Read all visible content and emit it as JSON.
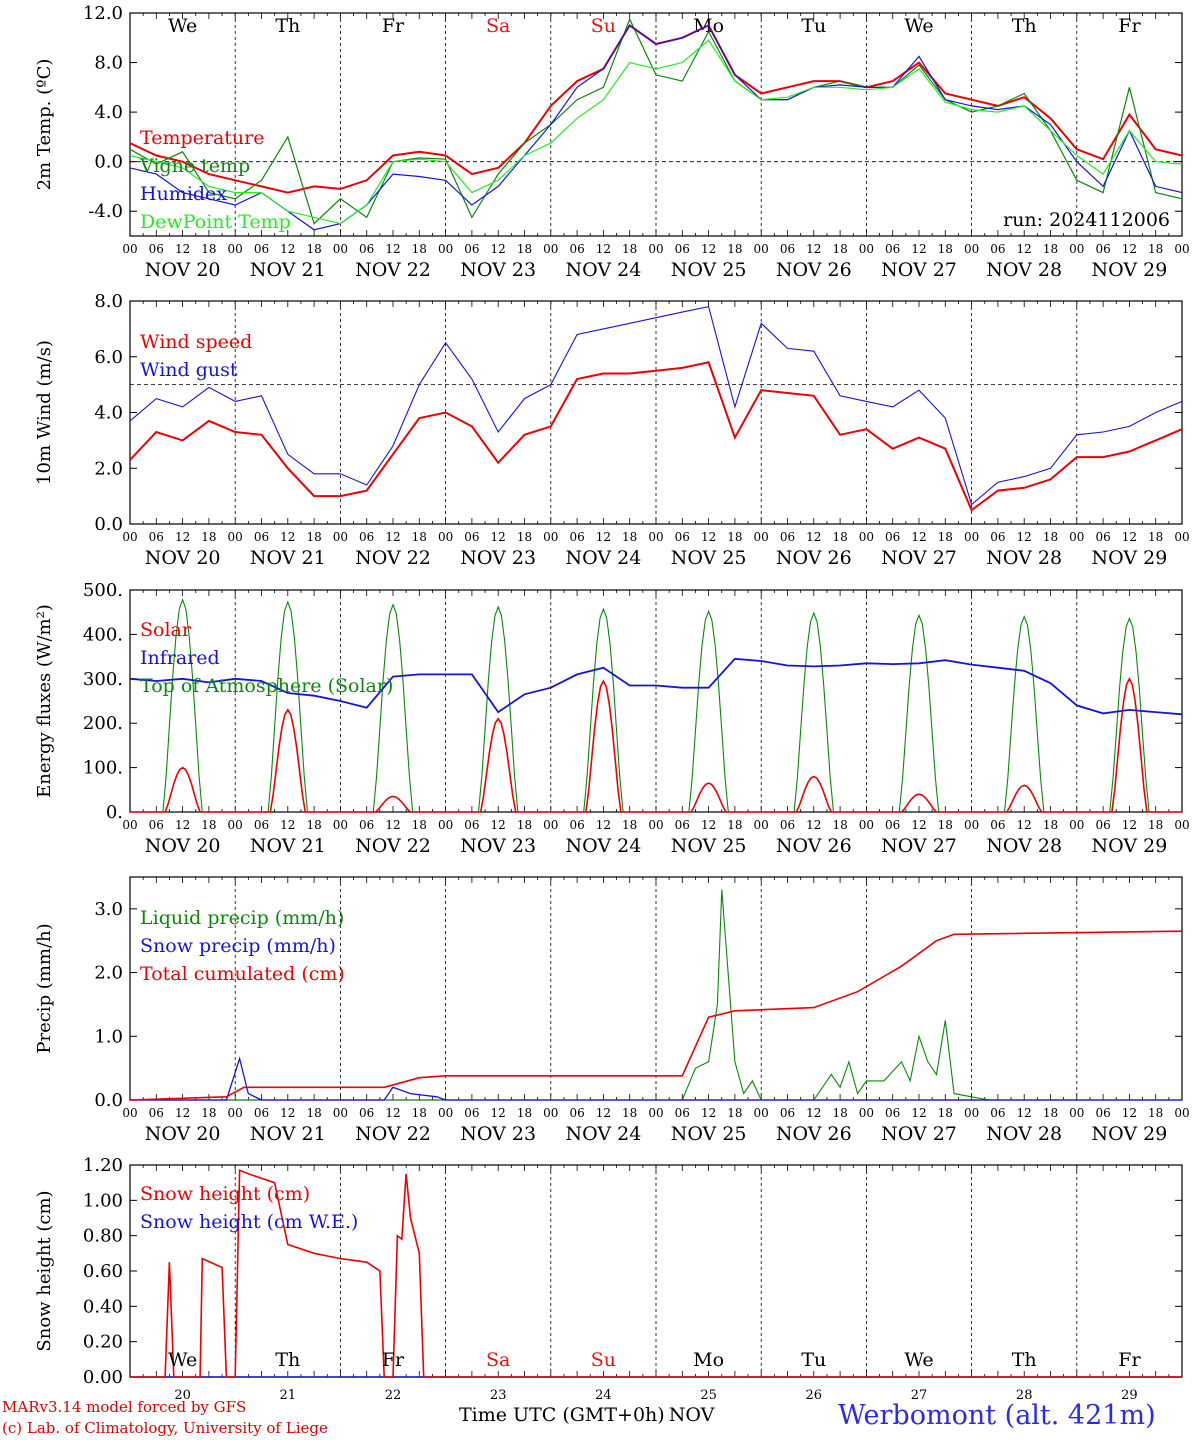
{
  "header": {},
  "colors": {
    "red": "#ee0000",
    "green": "#0a880a",
    "blue": "#1414dd",
    "lightgreen": "#22ee22",
    "weekend": "#ee1111"
  },
  "footer": {
    "model_line1": "MARv3.14 model forced by GFS",
    "model_line2": "(c) Lab. of Climatology, University of Liege",
    "time_label": "Time UTC (GMT+0h)",
    "month_label": "NOV",
    "station": "Werbomont (alt. 421m)"
  },
  "chart_data": [
    {
      "type": "line",
      "ylabel": "2m Temp. (ºC)",
      "ylim": [
        -6,
        12
      ],
      "yticks": [
        "-4.0",
        "0.0",
        "4.0",
        "8.0",
        "12.0"
      ],
      "ytick_values": [
        -4,
        0,
        4,
        8,
        12
      ],
      "refline": 0,
      "x_days_ticks": [
        "NOV 20",
        "NOV 21",
        "NOV 22",
        "NOV 23",
        "NOV 24",
        "NOV 25",
        "NOV 26",
        "NOV 27",
        "NOV 28",
        "NOV 29"
      ],
      "weekdays": [
        "We",
        "Th",
        "Fr",
        "Sa",
        "Su",
        "Mo",
        "Tu",
        "We",
        "Th",
        "Fr"
      ],
      "weekday_colors": [
        "#000",
        "#000",
        "#000",
        "#ee1111",
        "#ee1111",
        "#000",
        "#000",
        "#000",
        "#000",
        "#000"
      ],
      "annotation": "run: 2024112006",
      "x_hours": [
        0,
        6,
        12,
        18,
        24,
        30,
        36,
        42,
        48,
        54,
        60,
        66,
        72,
        78,
        84,
        90,
        96,
        102,
        108,
        114,
        120,
        126,
        132,
        138,
        144,
        150,
        156,
        162,
        168,
        174,
        180,
        186,
        192,
        198,
        204,
        210,
        216,
        222,
        228,
        234,
        240
      ],
      "series": [
        {
          "name": "Temperature",
          "color": "red",
          "values": [
            1.5,
            0.5,
            0.0,
            -1.0,
            -1.5,
            -2.0,
            -2.5,
            -2.0,
            -2.2,
            -1.5,
            0.5,
            0.8,
            0.5,
            -1.0,
            -0.5,
            1.5,
            4.5,
            6.5,
            7.5,
            11.0,
            9.5,
            10.0,
            11.0,
            7.0,
            5.5,
            6.0,
            6.5,
            6.5,
            6.0,
            6.5,
            8.0,
            5.5,
            5.0,
            4.5,
            5.2,
            3.5,
            1.0,
            0.2,
            3.8,
            1.0,
            0.5
          ]
        },
        {
          "name": "Vigne temp",
          "color": "green",
          "values": [
            1.0,
            -0.2,
            0.8,
            -2.5,
            -3.0,
            -1.5,
            2.0,
            -5.0,
            -3.0,
            -4.5,
            0.0,
            0.3,
            0.2,
            -4.5,
            -1.0,
            1.5,
            3.0,
            5.0,
            6.0,
            11.5,
            7.0,
            6.5,
            10.5,
            6.5,
            5.0,
            5.0,
            6.0,
            6.5,
            6.0,
            6.0,
            7.8,
            5.0,
            4.0,
            4.5,
            5.5,
            2.5,
            -1.5,
            -2.5,
            6.0,
            -2.5,
            -3.0
          ]
        },
        {
          "name": "Humidex",
          "color": "blue",
          "values": [
            -0.5,
            -1.0,
            -2.5,
            -3.0,
            -3.5,
            -2.5,
            -4.0,
            -5.5,
            -5.0,
            -3.5,
            -1.0,
            -1.2,
            -1.5,
            -3.5,
            -2.0,
            0.5,
            3.0,
            6.0,
            7.5,
            11.0,
            9.5,
            10.0,
            11.0,
            7.0,
            5.0,
            5.0,
            6.0,
            6.2,
            6.0,
            6.0,
            8.5,
            5.0,
            4.5,
            4.2,
            4.5,
            3.0,
            0.0,
            -2.0,
            2.5,
            -2.0,
            -2.5
          ]
        },
        {
          "name": "DewPoint Temp",
          "color": "lightgreen",
          "values": [
            0.5,
            0.0,
            -0.5,
            -2.0,
            -2.5,
            -2.5,
            -4.0,
            -4.5,
            -5.0,
            -3.5,
            0.0,
            0.2,
            0.0,
            -2.5,
            -1.5,
            0.5,
            1.5,
            3.5,
            5.0,
            8.0,
            7.5,
            8.0,
            9.8,
            6.5,
            5.0,
            5.2,
            6.0,
            6.0,
            5.8,
            6.0,
            7.5,
            4.8,
            4.2,
            4.0,
            4.5,
            2.5,
            0.5,
            -1.0,
            2.5,
            0.0,
            -0.2
          ]
        }
      ]
    },
    {
      "type": "line",
      "ylabel": "10m Wind (m/s)",
      "ylim": [
        0,
        8
      ],
      "yticks": [
        "0.0",
        "2.0",
        "4.0",
        "6.0",
        "8.0"
      ],
      "ytick_values": [
        0,
        2,
        4,
        6,
        8
      ],
      "refline": 5,
      "x_days_ticks": [
        "NOV 20",
        "NOV 21",
        "NOV 22",
        "NOV 23",
        "NOV 24",
        "NOV 25",
        "NOV 26",
        "NOV 27",
        "NOV 28",
        "NOV 29"
      ],
      "x_hours": [
        0,
        6,
        12,
        18,
        24,
        30,
        36,
        42,
        48,
        54,
        60,
        66,
        72,
        78,
        84,
        90,
        96,
        102,
        108,
        114,
        120,
        126,
        132,
        138,
        144,
        150,
        156,
        162,
        168,
        174,
        180,
        186,
        192,
        198,
        204,
        210,
        216,
        222,
        228,
        234,
        240
      ],
      "series": [
        {
          "name": "Wind speed",
          "color": "red",
          "values": [
            2.3,
            3.3,
            3.0,
            3.7,
            3.3,
            3.2,
            2.0,
            1.0,
            1.0,
            1.2,
            2.5,
            3.8,
            4.0,
            3.5,
            2.2,
            3.2,
            3.5,
            5.2,
            5.4,
            5.4,
            5.5,
            5.6,
            5.8,
            3.1,
            4.8,
            4.7,
            4.6,
            3.2,
            3.4,
            2.7,
            3.1,
            2.7,
            0.5,
            1.2,
            1.3,
            1.6,
            2.4,
            2.4,
            2.6,
            3.0,
            3.4
          ]
        },
        {
          "name": "Wind gust",
          "color": "blue",
          "values": [
            3.7,
            4.5,
            4.2,
            4.9,
            4.4,
            4.6,
            2.5,
            1.8,
            1.8,
            1.4,
            2.8,
            5.0,
            6.5,
            5.2,
            3.3,
            4.5,
            5.0,
            6.8,
            7.0,
            7.2,
            7.4,
            7.6,
            7.8,
            4.2,
            7.2,
            6.3,
            6.2,
            4.6,
            4.4,
            4.2,
            4.8,
            3.8,
            0.7,
            1.5,
            1.7,
            2.0,
            3.2,
            3.3,
            3.5,
            4.0,
            4.4
          ]
        }
      ]
    },
    {
      "type": "line",
      "ylabel": "Energy fluxes (W/m²)",
      "ylim": [
        0,
        500
      ],
      "yticks": [
        "0.",
        "100.",
        "200.",
        "300.",
        "400.",
        "500."
      ],
      "ytick_values": [
        0,
        100,
        200,
        300,
        400,
        500
      ],
      "x_days_ticks": [
        "NOV 20",
        "NOV 21",
        "NOV 22",
        "NOV 23",
        "NOV 24",
        "NOV 25",
        "NOV 26",
        "NOV 27",
        "NOV 28",
        "NOV 29"
      ],
      "infrared_x": [
        0,
        6,
        12,
        18,
        24,
        30,
        36,
        42,
        48,
        54,
        60,
        66,
        72,
        78,
        84,
        90,
        96,
        102,
        108,
        114,
        120,
        126,
        132,
        138,
        144,
        150,
        156,
        162,
        168,
        174,
        180,
        186,
        192,
        198,
        204,
        210,
        216,
        222,
        228,
        234,
        240
      ],
      "infrared": [
        300,
        295,
        300,
        292,
        300,
        295,
        268,
        262,
        250,
        235,
        305,
        310,
        310,
        310,
        225,
        265,
        280,
        310,
        325,
        285,
        285,
        280,
        280,
        345,
        340,
        330,
        328,
        330,
        335,
        333,
        335,
        342,
        332,
        325,
        318,
        290,
        240,
        222,
        230,
        225,
        220
      ],
      "solar_peaks": [
        100,
        230,
        35,
        210,
        295,
        65,
        80,
        40,
        60,
        300
      ],
      "toa_peaks": [
        478,
        473,
        467,
        462,
        457,
        452,
        448,
        443,
        440,
        436
      ],
      "series": [
        {
          "name": "Solar",
          "color": "red"
        },
        {
          "name": "Infrared",
          "color": "blue"
        },
        {
          "name": "Top of Atmosphere (Solar)",
          "color": "green"
        }
      ]
    },
    {
      "type": "line",
      "ylabel": "Precip (mm/h)",
      "ylim": [
        0,
        3.5
      ],
      "yticks": [
        "0.0",
        "1.0",
        "2.0",
        "3.0"
      ],
      "ytick_values": [
        0,
        1,
        2,
        3
      ],
      "x_days_ticks": [
        "NOV 20",
        "NOV 21",
        "NOV 22",
        "NOV 23",
        "NOV 24",
        "NOV 25",
        "NOV 26",
        "NOV 27",
        "NOV 28",
        "NOV 29"
      ],
      "liquid": [
        [
          0,
          0
        ],
        [
          96,
          0
        ],
        [
          126,
          0
        ],
        [
          129,
          0.5
        ],
        [
          132,
          0.6
        ],
        [
          134,
          1.5
        ],
        [
          135,
          3.3
        ],
        [
          138,
          0.6
        ],
        [
          140,
          0.1
        ],
        [
          142,
          0.3
        ],
        [
          144,
          0
        ],
        [
          156,
          0
        ],
        [
          160,
          0.4
        ],
        [
          162,
          0.2
        ],
        [
          164,
          0.6
        ],
        [
          166,
          0.1
        ],
        [
          168,
          0.3
        ],
        [
          172,
          0.3
        ],
        [
          176,
          0.6
        ],
        [
          178,
          0.3
        ],
        [
          180,
          1.0
        ],
        [
          182,
          0.6
        ],
        [
          184,
          0.4
        ],
        [
          186,
          1.25
        ],
        [
          188,
          0.1
        ],
        [
          192,
          0.05
        ],
        [
          196,
          0
        ],
        [
          240,
          0
        ]
      ],
      "snow": [
        [
          0,
          0
        ],
        [
          22,
          0
        ],
        [
          25,
          0.65
        ],
        [
          27,
          0.1
        ],
        [
          30,
          0
        ],
        [
          58,
          0
        ],
        [
          60,
          0.2
        ],
        [
          64,
          0.1
        ],
        [
          70,
          0.05
        ],
        [
          72,
          0
        ],
        [
          240,
          0
        ]
      ],
      "cumulated": [
        [
          0,
          0
        ],
        [
          22,
          0.05
        ],
        [
          26,
          0.2
        ],
        [
          58,
          0.2
        ],
        [
          66,
          0.35
        ],
        [
          72,
          0.38
        ],
        [
          126,
          0.38
        ],
        [
          132,
          1.3
        ],
        [
          138,
          1.4
        ],
        [
          156,
          1.45
        ],
        [
          166,
          1.7
        ],
        [
          176,
          2.1
        ],
        [
          184,
          2.5
        ],
        [
          188,
          2.6
        ],
        [
          240,
          2.65
        ]
      ],
      "series": [
        {
          "name": "Liquid precip (mm/h)",
          "color": "green"
        },
        {
          "name": "Snow precip (mm/h)",
          "color": "blue"
        },
        {
          "name": "Total cumulated (cm)",
          "color": "red"
        }
      ]
    },
    {
      "type": "line",
      "ylabel": "Snow height (cm)",
      "ylim": [
        0,
        1.2
      ],
      "yticks": [
        "0.00",
        "0.20",
        "0.40",
        "0.60",
        "0.80",
        "1.00",
        "1.20"
      ],
      "ytick_values": [
        0,
        0.2,
        0.4,
        0.6,
        0.8,
        1.0,
        1.2
      ],
      "x_days_ticks": [
        "20",
        "21",
        "22",
        "23",
        "24",
        "25",
        "26",
        "27",
        "28",
        "29"
      ],
      "weekdays": [
        "We",
        "Th",
        "Fr",
        "Sa",
        "Su",
        "Mo",
        "Tu",
        "We",
        "Th",
        "Fr"
      ],
      "weekday_colors": [
        "#000",
        "#000",
        "#000",
        "#ee1111",
        "#ee1111",
        "#000",
        "#000",
        "#000",
        "#000",
        "#000"
      ],
      "height": [
        [
          0,
          0
        ],
        [
          8,
          0
        ],
        [
          9,
          0.65
        ],
        [
          10,
          0
        ],
        [
          16,
          0
        ],
        [
          16.5,
          0.67
        ],
        [
          21,
          0.62
        ],
        [
          22,
          0
        ],
        [
          24,
          0
        ],
        [
          25,
          1.17
        ],
        [
          27,
          1.15
        ],
        [
          33,
          1.1
        ],
        [
          36,
          0.75
        ],
        [
          42,
          0.7
        ],
        [
          48,
          0.67
        ],
        [
          54,
          0.65
        ],
        [
          57,
          0.6
        ],
        [
          58,
          0
        ],
        [
          60,
          0
        ],
        [
          61,
          0.8
        ],
        [
          62,
          0.78
        ],
        [
          63,
          1.15
        ],
        [
          64,
          0.9
        ],
        [
          66,
          0.7
        ],
        [
          67,
          0
        ],
        [
          240,
          0
        ]
      ],
      "series": [
        {
          "name": "Snow height (cm)",
          "color": "red"
        },
        {
          "name": "Snow height (cm W.E.)",
          "color": "blue"
        }
      ]
    }
  ]
}
